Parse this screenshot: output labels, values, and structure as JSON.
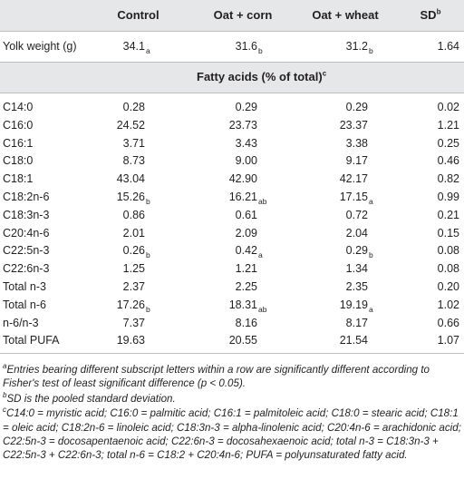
{
  "header": {
    "control": "Control",
    "oat_corn": "Oat + corn",
    "oat_wheat": "Oat + wheat",
    "sd": "SD",
    "sd_sup": "b"
  },
  "yolk": {
    "label": "Yolk weight (g)",
    "control": "34.1",
    "control_sub": "a",
    "oat_corn": "31.6",
    "oat_corn_sub": "b",
    "oat_wheat": "31.2",
    "oat_wheat_sub": "b",
    "sd": "1.64"
  },
  "section": {
    "title": "Fatty acids (% of total)",
    "title_sup": "c"
  },
  "rows": [
    {
      "label": "C14:0",
      "control": "0.28",
      "oat_corn": "0.29",
      "oat_wheat": "0.29",
      "sd": "0.02"
    },
    {
      "label": "C16:0",
      "control": "24.52",
      "oat_corn": "23.73",
      "oat_wheat": "23.37",
      "sd": "1.21"
    },
    {
      "label": "C16:1",
      "control": "3.71",
      "oat_corn": "3.43",
      "oat_wheat": "3.38",
      "sd": "0.25"
    },
    {
      "label": "C18:0",
      "control": "8.73",
      "oat_corn": "9.00",
      "oat_wheat": "9.17",
      "sd": "0.46"
    },
    {
      "label": "C18:1",
      "control": "43.04",
      "oat_corn": "42.90",
      "oat_wheat": "42.17",
      "sd": "0.82"
    },
    {
      "label": "C18:2n-6",
      "control": "15.26",
      "control_sub": "b",
      "oat_corn": "16.21",
      "oat_corn_sub": "ab",
      "oat_wheat": "17.15",
      "oat_wheat_sub": "a",
      "sd": "0.99"
    },
    {
      "label": "C18:3n-3",
      "control": "0.86",
      "oat_corn": "0.61",
      "oat_wheat": "0.72",
      "sd": "0.21"
    },
    {
      "label": "C20:4n-6",
      "control": "2.01",
      "oat_corn": "2.09",
      "oat_wheat": "2.04",
      "sd": "0.15"
    },
    {
      "label": "C22:5n-3",
      "control": "0.26",
      "control_sub": "b",
      "oat_corn": "0.42",
      "oat_corn_sub": "a",
      "oat_wheat": "0.29",
      "oat_wheat_sub": "b",
      "sd": "0.08"
    },
    {
      "label": "C22:6n-3",
      "control": "1.25",
      "oat_corn": "1.21",
      "oat_wheat": "1.34",
      "sd": "0.08"
    },
    {
      "label": "Total n-3",
      "control": "2.37",
      "oat_corn": "2.25",
      "oat_wheat": "2.35",
      "sd": "0.20"
    },
    {
      "label": "Total n-6",
      "control": "17.26",
      "control_sub": "b",
      "oat_corn": "18.31",
      "oat_corn_sub": "ab",
      "oat_wheat": "19.19",
      "oat_wheat_sub": "a",
      "sd": "1.02"
    },
    {
      "label": "n-6/n-3",
      "control": "7.37",
      "oat_corn": "8.16",
      "oat_wheat": "8.17",
      "sd": "0.66"
    },
    {
      "label": "Total PUFA",
      "control": "19.63",
      "oat_corn": "20.55",
      "oat_wheat": "21.54",
      "sd": "1.07"
    }
  ],
  "footnotes": {
    "a_mark": "a",
    "a_text": "Entries bearing different subscript letters within a row are significantly different according to Fisher's test of least significant difference (p < 0.05).",
    "b_mark": "b",
    "b_text": "SD is the pooled standard deviation.",
    "c_mark": "c",
    "c_text": "C14:0 = myristic acid; C16:0 = palmitic acid; C16:1 = palmitoleic acid; C18:0 = stearic acid; C18:1 = oleic acid; C18:2n-6 = linoleic acid; C18:3n-3 = alpha-linolenic acid; C20:4n-6 = arachidonic acid; C22:5n-3 = docosapentaenoic acid; C22:6n-3 = docosahexaenoic acid; total n-3 = C18:3n-3 + C22:5n-3 + C22:6n-3; total n-6 = C18:2 + C20:4n-6; PUFA = polyunsaturated fatty acid."
  }
}
